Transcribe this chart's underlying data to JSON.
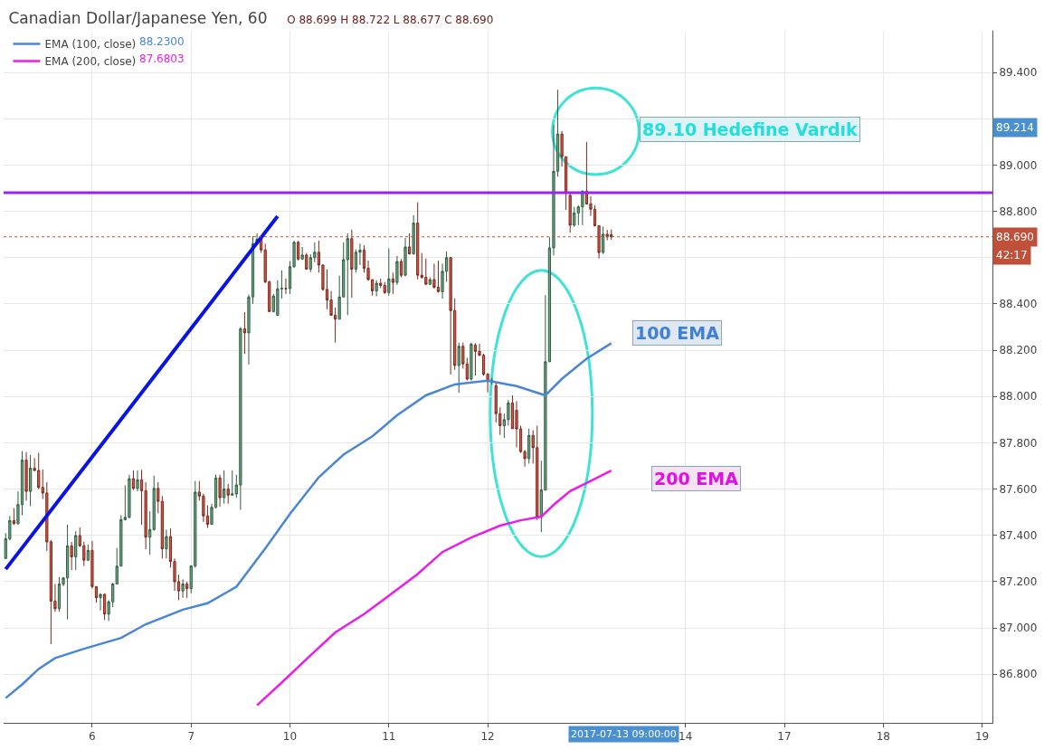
{
  "chart_data": {
    "type": "candlestick",
    "title": "Canadian Dollar/Japanese Yen, 60",
    "subtitle": "O 88.699 H 88.722 L 88.677 C 88.690",
    "categories": [
      null,
      null,
      null,
      null,
      null,
      null,
      null,
      null,
      null,
      null,
      null,
      null,
      null,
      null,
      null,
      null,
      null,
      null,
      null,
      null,
      null,
      "6",
      null,
      null,
      null,
      null,
      null,
      null,
      null,
      null,
      null,
      null,
      null,
      null,
      null,
      null,
      null,
      null,
      null,
      null,
      null,
      null,
      null,
      null,
      null,
      "7",
      null,
      null,
      null,
      null,
      null,
      null,
      null,
      null,
      null,
      null,
      null,
      null,
      null,
      null,
      null,
      null,
      null,
      null,
      null,
      null,
      null,
      null,
      null,
      "10",
      null,
      null,
      null,
      null,
      null,
      null,
      null,
      null,
      null,
      null,
      null,
      null,
      null,
      null,
      null,
      null,
      null,
      null,
      null,
      null,
      null,
      null,
      null,
      "11",
      null,
      null,
      null,
      null,
      null,
      null,
      null,
      null,
      null,
      null,
      null,
      null,
      null,
      null,
      null,
      null,
      null,
      null,
      null,
      null,
      null,
      null,
      null,
      "12",
      null,
      null,
      null,
      null,
      null,
      null,
      null,
      null,
      null,
      null,
      null,
      null,
      null,
      null,
      null,
      null,
      null,
      null,
      null,
      null,
      null,
      null,
      null,
      null,
      null,
      null,
      null,
      null,
      null,
      null,
      null,
      null,
      null,
      null,
      null,
      null,
      null,
      null,
      null,
      null,
      null,
      null,
      null,
      null,
      null,
      null,
      null,
      "14",
      null,
      null,
      null,
      null,
      null,
      null,
      null,
      null,
      null,
      null,
      null,
      null,
      null,
      null,
      null,
      null,
      null,
      null,
      null,
      null,
      null,
      null,
      null,
      "17",
      null,
      null,
      null,
      null,
      null,
      null,
      null,
      null,
      null,
      null,
      null,
      null,
      null,
      null,
      null,
      null,
      null,
      null,
      null,
      null,
      null,
      null,
      null,
      "18",
      null,
      null,
      null,
      null,
      null,
      null,
      null,
      null,
      null,
      null,
      null,
      null,
      null,
      null,
      null,
      null,
      null,
      null,
      null,
      null,
      null,
      null,
      null,
      "19",
      null,
      null
    ],
    "ohlc": [
      [
        87.3,
        87.41,
        87.3,
        87.385
      ],
      [
        87.385,
        87.484,
        87.379,
        87.464
      ],
      [
        87.464,
        87.517,
        87.445,
        87.451
      ],
      [
        87.451,
        87.59,
        87.445,
        87.533
      ],
      [
        87.533,
        87.764,
        87.487,
        87.725
      ],
      [
        87.725,
        87.76,
        87.55,
        87.59
      ],
      [
        87.59,
        87.747,
        87.526,
        87.69
      ],
      [
        87.69,
        87.734,
        87.678,
        87.68
      ],
      [
        87.68,
        87.757,
        87.6,
        87.607
      ],
      [
        87.607,
        87.685,
        87.557,
        87.583
      ],
      [
        87.583,
        87.63,
        87.333,
        87.372
      ],
      [
        87.372,
        87.38,
        86.93,
        87.116
      ],
      [
        87.116,
        87.19,
        87.07,
        87.083
      ],
      [
        87.083,
        87.22,
        87.07,
        87.19
      ],
      [
        87.19,
        87.22,
        87.18,
        87.216
      ],
      [
        87.216,
        87.447,
        87.037,
        87.355
      ],
      [
        87.355,
        87.372,
        87.25,
        87.307
      ],
      [
        87.307,
        87.418,
        87.25,
        87.399
      ],
      [
        87.399,
        87.434,
        87.35,
        87.355
      ],
      [
        87.355,
        87.372,
        87.267,
        87.293
      ],
      [
        87.293,
        87.36,
        87.29,
        87.335
      ],
      [
        87.335,
        87.376,
        87.17,
        87.179
      ],
      [
        87.179,
        87.18,
        87.109,
        87.131
      ],
      [
        87.131,
        87.15,
        87.076,
        87.145
      ],
      [
        87.145,
        87.15,
        87.034,
        87.06
      ],
      [
        87.06,
        87.12,
        87.03,
        87.113
      ],
      [
        87.113,
        87.195,
        87.09,
        87.19
      ],
      [
        87.19,
        87.346,
        87.19,
        87.267
      ],
      [
        87.267,
        87.487,
        87.267,
        87.468
      ],
      [
        87.468,
        87.616,
        87.464,
        87.478
      ],
      [
        87.478,
        87.662,
        87.474,
        87.645
      ],
      [
        87.645,
        87.68,
        87.596,
        87.603
      ],
      [
        87.603,
        87.68,
        87.59,
        87.64
      ],
      [
        87.64,
        87.683,
        87.445,
        87.593
      ],
      [
        87.593,
        87.63,
        87.34,
        87.392
      ],
      [
        87.392,
        87.504,
        87.316,
        87.425
      ],
      [
        87.425,
        87.658,
        87.42,
        87.603
      ],
      [
        87.603,
        87.63,
        87.495,
        87.547
      ],
      [
        87.547,
        87.57,
        87.3,
        87.342
      ],
      [
        87.342,
        87.425,
        87.3,
        87.395
      ],
      [
        87.395,
        87.43,
        87.26,
        87.287
      ],
      [
        87.287,
        87.3,
        87.16,
        87.2
      ],
      [
        87.2,
        87.23,
        87.12,
        87.16
      ],
      [
        87.16,
        87.21,
        87.13,
        87.19
      ],
      [
        87.19,
        87.2,
        87.13,
        87.17
      ],
      [
        87.17,
        87.27,
        87.15,
        87.268
      ],
      [
        87.268,
        87.635,
        87.26,
        87.587
      ],
      [
        87.587,
        87.635,
        87.55,
        87.57
      ],
      [
        87.57,
        87.58,
        87.458,
        87.484
      ],
      [
        87.484,
        87.53,
        87.432,
        87.448
      ],
      [
        87.448,
        87.536,
        87.446,
        87.521
      ],
      [
        87.521,
        87.662,
        87.517,
        87.648
      ],
      [
        87.648,
        87.662,
        87.524,
        87.563
      ],
      [
        87.563,
        87.681,
        87.537,
        87.6
      ],
      [
        87.6,
        87.622,
        87.537,
        87.574
      ],
      [
        87.574,
        87.681,
        87.572,
        87.579
      ],
      [
        87.579,
        87.662,
        87.563,
        87.618
      ],
      [
        87.618,
        88.3,
        87.51,
        88.292
      ],
      [
        88.292,
        88.364,
        88.184,
        88.275
      ],
      [
        88.275,
        88.44,
        88.138,
        88.43
      ],
      [
        88.43,
        88.692,
        88.4,
        88.66
      ],
      [
        88.66,
        88.705,
        88.653,
        88.679
      ],
      [
        88.679,
        88.686,
        88.62,
        88.633
      ],
      [
        88.633,
        88.66,
        88.49,
        88.495
      ],
      [
        88.495,
        88.5,
        88.364,
        88.367
      ],
      [
        88.367,
        88.443,
        88.362,
        88.434
      ],
      [
        88.351,
        88.502,
        88.348,
        88.465
      ],
      [
        88.465,
        88.545,
        88.423,
        88.467
      ],
      [
        88.467,
        88.51,
        88.443,
        88.466
      ],
      [
        88.466,
        88.585,
        88.443,
        88.561
      ],
      [
        88.561,
        88.673,
        88.555,
        88.666
      ],
      [
        88.666,
        88.673,
        88.587,
        88.594
      ],
      [
        88.594,
        88.646,
        88.59,
        88.611
      ],
      [
        88.611,
        88.62,
        88.548,
        88.55
      ],
      [
        88.55,
        88.614,
        88.537,
        88.6
      ],
      [
        88.6,
        88.666,
        88.58,
        88.623
      ],
      [
        88.623,
        88.673,
        88.535,
        88.568
      ],
      [
        88.568,
        88.57,
        88.456,
        88.463
      ],
      [
        88.463,
        88.548,
        88.377,
        88.417
      ],
      [
        88.417,
        88.456,
        88.35,
        88.351
      ],
      [
        88.351,
        88.384,
        88.233,
        88.334
      ],
      [
        88.334,
        88.522,
        88.334,
        88.43
      ],
      [
        88.43,
        88.666,
        88.427,
        88.591
      ],
      [
        88.591,
        88.705,
        88.351,
        88.682
      ],
      [
        88.682,
        88.721,
        88.427,
        88.55
      ],
      [
        88.55,
        88.636,
        88.535,
        88.623
      ],
      [
        88.623,
        88.66,
        88.568,
        88.632
      ],
      [
        88.632,
        88.653,
        88.535,
        88.554
      ],
      [
        88.554,
        88.587,
        88.5,
        88.505
      ],
      [
        88.505,
        88.505,
        88.436,
        88.456
      ],
      [
        88.456,
        88.502,
        88.433,
        88.489
      ],
      [
        88.489,
        88.509,
        88.469,
        88.48
      ],
      [
        88.48,
        88.495,
        88.443,
        88.449
      ],
      [
        88.449,
        88.64,
        88.436,
        88.508
      ],
      [
        88.508,
        88.535,
        88.443,
        88.493
      ],
      [
        88.493,
        88.607,
        88.482,
        88.583
      ],
      [
        88.583,
        88.594,
        88.515,
        88.524
      ],
      [
        88.524,
        88.686,
        88.519,
        88.646
      ],
      [
        88.646,
        88.705,
        88.613,
        88.616
      ],
      [
        88.616,
        88.784,
        88.613,
        88.749
      ],
      [
        88.749,
        88.839,
        88.506,
        88.524
      ],
      [
        88.524,
        88.62,
        88.509,
        88.515
      ],
      [
        88.515,
        88.596,
        88.482,
        88.485
      ],
      [
        88.485,
        88.515,
        88.482,
        88.505
      ],
      [
        88.505,
        88.574,
        88.466,
        88.472
      ],
      [
        88.472,
        88.587,
        88.449,
        88.453
      ],
      [
        88.453,
        88.574,
        88.423,
        88.541
      ],
      [
        88.541,
        88.627,
        88.495,
        88.6
      ],
      [
        88.6,
        88.6,
        88.095,
        88.371
      ],
      [
        88.371,
        88.423,
        88.115,
        88.134
      ],
      [
        88.134,
        88.233,
        88.016,
        88.217
      ],
      [
        88.217,
        88.233,
        88.121,
        88.141
      ],
      [
        88.141,
        88.167,
        88.069,
        88.075
      ],
      [
        88.075,
        88.233,
        88.069,
        88.226
      ],
      [
        88.222,
        88.23,
        88.09,
        88.195
      ],
      [
        88.195,
        88.228,
        88.175,
        88.178
      ],
      [
        88.178,
        88.185,
        88.09,
        88.097
      ],
      [
        88.097,
        88.1,
        88.018,
        88.064
      ],
      [
        88.064,
        88.08,
        88.05,
        88.07
      ],
      [
        88.047,
        88.064,
        87.887,
        87.926
      ],
      [
        87.926,
        87.953,
        87.834,
        87.874
      ],
      [
        87.874,
        87.926,
        87.821,
        87.9
      ],
      [
        87.9,
        87.985,
        87.874,
        87.972
      ],
      [
        87.972,
        88.005,
        87.861,
        87.861
      ],
      [
        87.94,
        87.98,
        87.78,
        87.86
      ],
      [
        87.86,
        87.874,
        87.756,
        87.762
      ],
      [
        87.762,
        87.769,
        87.697,
        87.732
      ],
      [
        87.732,
        87.861,
        87.71,
        87.832
      ],
      [
        87.832,
        87.854,
        87.71,
        87.779
      ],
      [
        87.779,
        87.874,
        87.467,
        87.48
      ],
      [
        87.48,
        87.723,
        87.414,
        87.596
      ],
      [
        87.596,
        88.438,
        87.593,
        88.15
      ],
      [
        88.15,
        88.688,
        88.15,
        88.642
      ],
      [
        88.642,
        89.174,
        88.609,
        88.973
      ],
      [
        88.973,
        89.325,
        88.95,
        89.134
      ],
      [
        89.134,
        89.147,
        88.993,
        89.036
      ],
      [
        89.036,
        89.036,
        88.806,
        88.878
      ],
      [
        88.869,
        88.878,
        88.708,
        88.74
      ],
      [
        88.74,
        88.819,
        88.734,
        88.793
      ],
      [
        88.793,
        88.826,
        88.74,
        88.819
      ],
      [
        88.819,
        88.891,
        88.74,
        88.887
      ],
      [
        88.887,
        89.1,
        88.83,
        88.832
      ],
      [
        88.832,
        88.865,
        88.78,
        88.809
      ],
      [
        88.809,
        88.826,
        88.734,
        88.738
      ],
      [
        88.738,
        88.738,
        88.596,
        88.622
      ],
      [
        88.622,
        88.734,
        88.616,
        88.701
      ],
      [
        88.701,
        88.72,
        88.675,
        88.69
      ],
      [
        88.699,
        88.722,
        88.677,
        88.69
      ],
      null,
      null,
      null,
      null,
      null,
      null,
      null,
      null,
      null,
      null,
      null,
      null,
      null,
      null,
      null,
      null,
      null,
      null,
      null,
      null,
      null,
      null,
      null,
      null,
      null,
      null,
      null,
      null,
      null,
      null,
      null,
      null,
      null,
      null,
      null,
      null,
      null,
      null,
      null,
      null,
      null,
      null,
      null,
      null,
      null,
      null,
      null,
      null,
      null,
      null,
      null,
      null,
      null,
      null,
      null,
      null,
      null,
      null,
      null,
      null,
      null,
      null,
      null,
      null,
      null,
      null,
      null,
      null,
      null,
      null,
      null,
      null,
      null,
      null,
      null,
      null,
      null,
      null,
      null,
      null,
      null,
      null,
      null,
      null,
      null,
      null,
      null,
      null,
      null,
      null,
      null,
      null
    ],
    "series": [
      {
        "type": "line",
        "name": "EMA (100, close)",
        "color": "#4a86d8",
        "values": [
          86.697,
          null,
          null,
          null,
          86.756,
          null,
          null,
          null,
          86.823,
          null,
          null,
          null,
          86.87,
          null,
          null,
          null,
          null,
          null,
          null,
          86.91,
          null,
          null,
          null,
          null,
          null,
          null,
          null,
          null,
          86.957,
          null,
          null,
          null,
          null,
          null,
          87.016,
          null,
          null,
          null,
          null,
          null,
          null,
          null,
          null,
          87.079,
          null,
          null,
          null,
          null,
          null,
          87.107,
          null,
          null,
          null,
          null,
          null,
          null,
          87.178,
          null,
          null,
          null,
          null,
          null,
          null,
          87.343,
          null,
          null,
          null,
          null,
          null,
          87.493,
          null,
          null,
          null,
          null,
          null,
          null,
          87.651,
          null,
          null,
          null,
          null,
          null,
          87.749,
          null,
          null,
          null,
          null,
          null,
          null,
          87.828,
          null,
          null,
          null,
          null,
          null,
          87.919,
          null,
          null,
          null,
          null,
          null,
          null,
          88.005,
          null,
          null,
          null,
          null,
          null,
          null,
          88.052,
          null,
          null,
          null,
          null,
          null,
          null,
          null,
          88.068,
          null,
          null,
          null,
          null,
          null,
          null,
          88.045,
          null,
          null,
          null,
          null,
          null,
          null,
          88.005,
          null,
          null,
          null,
          88.076,
          null,
          null,
          null,
          null,
          null,
          88.163,
          null,
          null,
          null,
          null,
          null,
          88.23,
          null,
          null,
          null,
          null,
          null,
          null,
          null,
          null,
          null,
          null,
          null,
          null,
          null,
          null,
          null,
          null,
          null,
          null,
          null,
          null,
          null,
          null,
          null,
          null,
          null,
          null,
          null,
          null,
          null,
          null,
          null,
          null,
          null,
          null,
          null,
          null,
          null,
          null,
          null,
          null,
          null,
          null,
          null,
          null,
          null,
          null,
          null,
          null,
          null,
          null,
          null,
          null,
          null,
          null,
          null,
          null,
          null,
          null,
          null,
          null,
          null,
          null,
          null,
          null,
          null,
          null,
          null,
          null,
          null,
          null,
          null,
          null,
          null,
          null,
          null,
          null,
          null,
          null,
          null,
          null,
          null,
          null,
          null,
          null,
          null,
          null,
          null,
          null,
          null,
          null,
          null,
          null
        ]
      },
      {
        "type": "line",
        "name": "EMA (200, close)",
        "color": "#e81ee8",
        "values": [
          null,
          null,
          null,
          null,
          null,
          null,
          null,
          null,
          null,
          null,
          null,
          null,
          null,
          null,
          null,
          null,
          null,
          null,
          null,
          null,
          null,
          null,
          null,
          null,
          null,
          null,
          null,
          null,
          null,
          null,
          null,
          null,
          null,
          null,
          null,
          null,
          null,
          null,
          null,
          null,
          null,
          null,
          null,
          null,
          null,
          null,
          null,
          null,
          null,
          null,
          null,
          null,
          null,
          null,
          null,
          null,
          null,
          null,
          null,
          null,
          null,
          86.666,
          null,
          null,
          null,
          null,
          null,
          86.764,
          null,
          null,
          null,
          null,
          null,
          null,
          86.882,
          null,
          null,
          null,
          null,
          null,
          86.981,
          null,
          null,
          null,
          null,
          null,
          null,
          87.06,
          null,
          null,
          null,
          null,
          null,
          87.139,
          null,
          null,
          null,
          null,
          null,
          null,
          87.233,
          null,
          null,
          null,
          null,
          null,
          87.328,
          null,
          null,
          null,
          null,
          null,
          null,
          87.391,
          null,
          null,
          null,
          null,
          null,
          null,
          87.442,
          null,
          null,
          null,
          null,
          87.465,
          null,
          null,
          null,
          null,
          87.481,
          null,
          null,
          87.532,
          null,
          null,
          null,
          87.591,
          null,
          null,
          null,
          null,
          87.635,
          null,
          null,
          null,
          null,
          87.68,
          null,
          null,
          null,
          null,
          null,
          null,
          null,
          null,
          null,
          null,
          null,
          null,
          null,
          null,
          null,
          null,
          null,
          null,
          null,
          null,
          null,
          null,
          null,
          null,
          null,
          null,
          null,
          null,
          null,
          null,
          null,
          null,
          null,
          null,
          null,
          null,
          null,
          null,
          null,
          null,
          null,
          null,
          null,
          null,
          null,
          null,
          null,
          null,
          null,
          null,
          null,
          null,
          null,
          null,
          null,
          null,
          null,
          null,
          null,
          null,
          null,
          null,
          null,
          null,
          null,
          null,
          null,
          null,
          null,
          null,
          null,
          null,
          null,
          null,
          null,
          null,
          null,
          null,
          null,
          null,
          null,
          null,
          null,
          null,
          null,
          null,
          null,
          null,
          null,
          null,
          null,
          null
        ]
      },
      {
        "type": "line",
        "color": "#0a14e0",
        "values": [
          87.254,
          null,
          null,
          null,
          null,
          null,
          null,
          null,
          null,
          null,
          null,
          null,
          null,
          null,
          null,
          null,
          null,
          null,
          null,
          null,
          null,
          null,
          null,
          null,
          null,
          null,
          null,
          null,
          null,
          null,
          null,
          null,
          null,
          null,
          null,
          null,
          null,
          null,
          null,
          null,
          null,
          null,
          null,
          null,
          null,
          null,
          null,
          null,
          null,
          null,
          null,
          null,
          null,
          null,
          null,
          null,
          null,
          null,
          null,
          null,
          null,
          null,
          null,
          null,
          null,
          null,
          88.779,
          null,
          null,
          null,
          null,
          null,
          null,
          null,
          null,
          null,
          null,
          null,
          null,
          null,
          null,
          null,
          null,
          null,
          null,
          null,
          null,
          null,
          null,
          null,
          null,
          null,
          null,
          null,
          null,
          null,
          null,
          null,
          null,
          null,
          null,
          null,
          null,
          null,
          null,
          null,
          null,
          null,
          null,
          null,
          null,
          null,
          null,
          null,
          null,
          null,
          null,
          null,
          null,
          null,
          null,
          null,
          null,
          null,
          null,
          null,
          null,
          null,
          null,
          null,
          null,
          null,
          null,
          null,
          null,
          null,
          null,
          null,
          null,
          null,
          null,
          null,
          null,
          null,
          null,
          null,
          null,
          null,
          null,
          null,
          null,
          null,
          null,
          null,
          null,
          null,
          null,
          null,
          null,
          null,
          null,
          null,
          null,
          null,
          null,
          null,
          null,
          null,
          null,
          null,
          null,
          null,
          null,
          null,
          null,
          null,
          null,
          null,
          null,
          null,
          null,
          null,
          null,
          null,
          null,
          null,
          null,
          null,
          null,
          null,
          null,
          null,
          null,
          null,
          null,
          null,
          null,
          null,
          null,
          null,
          null,
          null,
          null,
          null,
          null,
          null,
          null,
          null,
          null,
          null,
          null,
          null,
          null,
          null,
          null,
          null,
          null,
          null,
          null,
          null,
          null,
          null,
          null,
          null,
          null,
          null,
          null,
          null,
          null,
          null,
          null,
          null,
          null,
          null,
          null,
          null,
          null,
          null,
          null,
          null
        ]
      }
    ],
    "ylim": [
      86.59,
      89.58
    ],
    "yticks": [
      {
        "value": 86.8,
        "label": "86.800"
      },
      {
        "value": 87.0,
        "label": "87.000"
      },
      {
        "value": 87.2,
        "label": "87.200"
      },
      {
        "value": 87.4,
        "label": "87.400"
      },
      {
        "value": 87.6,
        "label": "87.600"
      },
      {
        "value": 87.8,
        "label": "87.800"
      },
      {
        "value": 88.0,
        "label": "88.000"
      },
      {
        "value": 88.2,
        "label": "88.200"
      },
      {
        "value": 88.4,
        "label": "88.400"
      },
      {
        "value": 88.6,
        "label": null
      },
      {
        "value": 88.8,
        "label": "88.800"
      },
      {
        "value": 89.0,
        "label": "89.000"
      },
      {
        "value": 89.2,
        "label": null
      },
      {
        "value": 89.4,
        "label": "89.400"
      }
    ],
    "ref_lines": [
      {
        "axis": "y",
        "value": 88.88,
        "label": null,
        "color": "#9b22f0",
        "line_style": "solid"
      },
      {
        "axis": "y",
        "value": 88.69,
        "label": "88.690",
        "color": "#c0503a",
        "line_style": "dotted"
      }
    ],
    "annotations": [
      "88.2300",
      "87.6803",
      "42:17",
      "89.214",
      "2017-07-13 09:00:00",
      "89.10 Hedefine Vardık",
      "100 EMA",
      "200 EMA"
    ],
    "grid": true,
    "legend": "top left"
  }
}
